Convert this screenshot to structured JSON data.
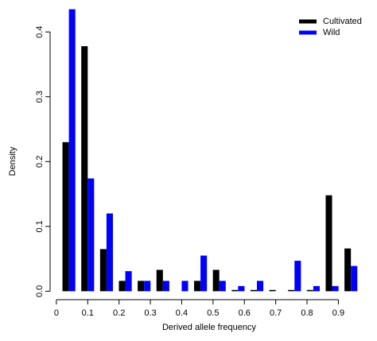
{
  "chart_data": {
    "type": "bar",
    "x": [
      0.04,
      0.1,
      0.16,
      0.22,
      0.28,
      0.34,
      0.4,
      0.46,
      0.52,
      0.58,
      0.64,
      0.7,
      0.76,
      0.82,
      0.88,
      0.94
    ],
    "series": [
      {
        "name": "Cultivated",
        "color": "#000000",
        "values": [
          0.23,
          0.378,
          0.065,
          0.016,
          0.016,
          0.033,
          0.0,
          0.016,
          0.033,
          0.002,
          0.002,
          0.002,
          0.002,
          0.002,
          0.148,
          0.066
        ]
      },
      {
        "name": "Wild",
        "color": "#0000ff",
        "values": [
          0.435,
          0.174,
          0.12,
          0.031,
          0.016,
          0.016,
          0.016,
          0.055,
          0.016,
          0.008,
          0.016,
          0.0,
          0.047,
          0.008,
          0.008,
          0.039
        ]
      }
    ],
    "xlabel": "Derived allele frequency",
    "ylabel": "Density",
    "xlim": [
      -0.02,
      0.97
    ],
    "ylim": [
      -0.013,
      0.437
    ],
    "xticks": [
      0,
      0.1,
      0.2,
      0.3,
      0.4,
      0.5,
      0.6,
      0.7,
      0.8,
      0.9
    ],
    "yticks": [
      {
        "value": 0,
        "label": "0.0"
      },
      0.1,
      0.2,
      0.3,
      0.4
    ],
    "legend": "top-right"
  }
}
